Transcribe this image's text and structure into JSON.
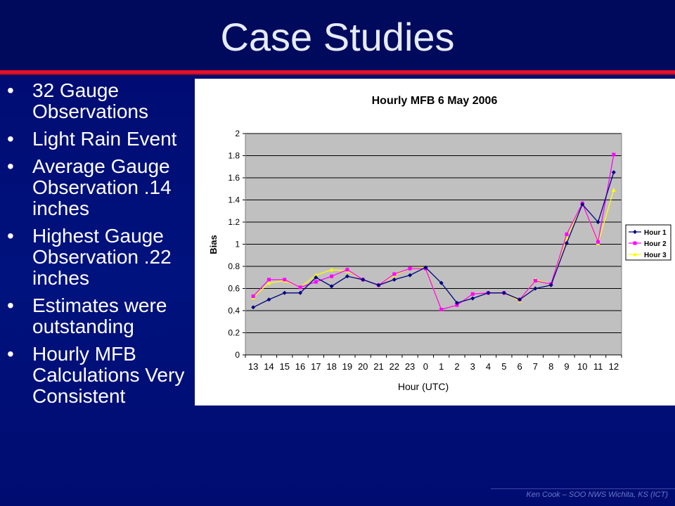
{
  "slide": {
    "title": "Case Studies",
    "footer": "Ken Cook – SOO NWS Wichita, KS (ICT)"
  },
  "bullets": [
    {
      "marker": "•",
      "text": "32 Gauge Observations"
    },
    {
      "marker": "•",
      "text": "Light Rain Event"
    },
    {
      "marker": "•",
      "text": "Average Gauge Observation .14 inches"
    },
    {
      "marker": "•",
      "text": "Highest Gauge Observation .22 inches"
    },
    {
      "marker": "•",
      "text": "Estimates were outstanding"
    },
    {
      "marker": "•",
      "text": "Hourly MFB Calculations Very Consistent"
    }
  ],
  "colors": {
    "background": "#000a6e",
    "accent_line": "#e8102a",
    "plot_area": "#c0c0c0",
    "series": [
      "#000080",
      "#ff00ff",
      "#ffff00"
    ]
  },
  "chart_data": {
    "type": "line",
    "title": "Hourly MFB 6 May 2006",
    "xlabel": "Hour (UTC)",
    "ylabel": "Bias",
    "ylim": [
      0,
      2
    ],
    "yticks": [
      "0",
      "0.2",
      "0.4",
      "0.6",
      "0.8",
      "1",
      "1.2",
      "1.4",
      "1.6",
      "1.8",
      "2"
    ],
    "grid": true,
    "legend": "right",
    "categories": [
      "13",
      "14",
      "15",
      "16",
      "17",
      "18",
      "19",
      "20",
      "21",
      "22",
      "23",
      "0",
      "1",
      "2",
      "3",
      "4",
      "5",
      "6",
      "7",
      "8",
      "9",
      "10",
      "11",
      "12"
    ],
    "series": [
      {
        "name": "Hour 1",
        "marker": "diamond",
        "values": [
          0.43,
          0.5,
          0.56,
          0.56,
          0.7,
          0.62,
          0.71,
          0.68,
          0.63,
          0.68,
          0.72,
          0.79,
          0.65,
          0.47,
          0.51,
          0.56,
          0.56,
          0.5,
          0.6,
          0.63,
          1.01,
          1.36,
          1.2,
          1.65
        ]
      },
      {
        "name": "Hour 2",
        "marker": "square",
        "values": [
          0.53,
          0.68,
          0.68,
          0.61,
          0.66,
          0.71,
          0.77,
          0.68,
          0.63,
          0.73,
          0.78,
          0.78,
          0.41,
          0.45,
          0.55,
          0.56,
          0.56,
          0.5,
          0.67,
          0.64,
          1.09,
          1.37,
          1.02,
          1.81
        ]
      },
      {
        "name": "Hour 3",
        "marker": "triangle",
        "values": [
          0.52,
          0.65,
          0.67,
          0.61,
          0.72,
          0.77,
          0.76,
          0.68,
          0.63,
          0.72,
          0.78,
          0.79,
          0.41,
          0.45,
          0.55,
          0.56,
          0.56,
          0.49,
          0.68,
          0.64,
          1.06,
          1.37,
          1.01,
          1.49
        ]
      }
    ]
  }
}
